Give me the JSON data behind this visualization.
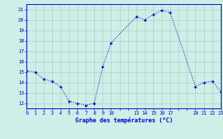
{
  "x": [
    0,
    1,
    2,
    3,
    4,
    5,
    6,
    7,
    8,
    9,
    10,
    13,
    14,
    15,
    16,
    17,
    20,
    21,
    22,
    23
  ],
  "y": [
    15.1,
    15.0,
    14.3,
    14.1,
    13.6,
    12.2,
    12.0,
    11.8,
    12.0,
    15.5,
    17.8,
    20.3,
    20.0,
    20.5,
    20.9,
    20.7,
    13.6,
    14.0,
    14.1,
    13.1
  ],
  "xlim": [
    0,
    23
  ],
  "ylim": [
    11.5,
    21.5
  ],
  "yticks": [
    12,
    13,
    14,
    15,
    16,
    17,
    18,
    19,
    20,
    21
  ],
  "xtick_labels": [
    0,
    1,
    2,
    3,
    4,
    5,
    6,
    7,
    8,
    9,
    10,
    13,
    14,
    15,
    16,
    17,
    20,
    21,
    22,
    23
  ],
  "xlabel": "Graphe des températures (°C)",
  "line_color": "#0000cc",
  "marker_color": "#0000cc",
  "bg_color": "#ceeee8",
  "grid_color": "#aaccbb",
  "axis_label_color": "#0000cc",
  "tick_color": "#0000cc",
  "spine_color": "#0000cc"
}
